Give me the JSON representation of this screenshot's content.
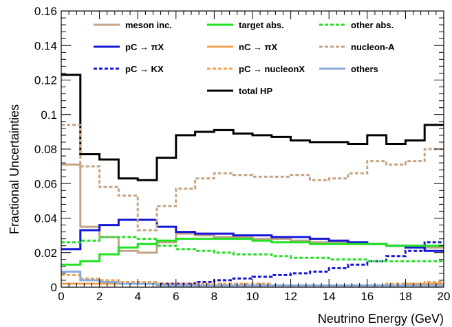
{
  "chart_data": {
    "type": "line",
    "step": true,
    "xlabel": "Neutrino Energy (GeV)",
    "ylabel": "Fractional Uncertainties",
    "xlim": [
      0,
      20
    ],
    "ylim": [
      0,
      0.16
    ],
    "x_ticks": [
      "0",
      "2",
      "4",
      "6",
      "8",
      "10",
      "12",
      "14",
      "16",
      "18",
      "20"
    ],
    "y_ticks": [
      "0",
      "0.02",
      "0.04",
      "0.06",
      "0.08",
      "0.1",
      "0.12",
      "0.14",
      "0.16"
    ],
    "grid": false,
    "legend_position": "top",
    "bin_edges": [
      0,
      1,
      2,
      3,
      4,
      5,
      6,
      7,
      8,
      9,
      10,
      11,
      12,
      13,
      14,
      15,
      16,
      17,
      18,
      19,
      20
    ],
    "series": [
      {
        "name": "meson inc.",
        "color": "#c4a484",
        "dash": "solid",
        "values": [
          0.071,
          0.035,
          0.029,
          0.021,
          0.02,
          0.026,
          0.031,
          0.03,
          0.029,
          0.029,
          0.028,
          0.028,
          0.027,
          0.026,
          0.026,
          0.025,
          0.025,
          0.024,
          0.024,
          0.023
        ]
      },
      {
        "name": "pC → πX",
        "color": "#1515d6",
        "dash": "solid",
        "values": [
          0.022,
          0.033,
          0.036,
          0.039,
          0.039,
          0.035,
          0.032,
          0.031,
          0.031,
          0.03,
          0.03,
          0.029,
          0.029,
          0.028,
          0.027,
          0.026,
          0.025,
          0.024,
          0.023,
          0.021
        ]
      },
      {
        "name": "pC → KX",
        "color": "#1515d6",
        "dash": "dotted",
        "values": [
          0.002,
          0.002,
          0.002,
          0.002,
          0.002,
          0.002,
          0.002,
          0.003,
          0.004,
          0.005,
          0.006,
          0.007,
          0.008,
          0.009,
          0.011,
          0.013,
          0.015,
          0.018,
          0.021,
          0.026
        ]
      },
      {
        "name": "target abs.",
        "color": "#22e022",
        "dash": "solid",
        "values": [
          0.013,
          0.015,
          0.019,
          0.023,
          0.025,
          0.027,
          0.028,
          0.028,
          0.028,
          0.028,
          0.027,
          0.026,
          0.026,
          0.025,
          0.025,
          0.025,
          0.025,
          0.024,
          0.024,
          0.024
        ]
      },
      {
        "name": "nC → πX",
        "color": "#f0a050",
        "dash": "solid",
        "values": [
          0.002,
          0.002,
          0.002,
          0.002,
          0.002,
          0.001,
          0.001,
          0.001,
          0.001,
          0.001,
          0.001,
          0.001,
          0.001,
          0.001,
          0.001,
          0.001,
          0.001,
          0.001,
          0.002,
          0.002
        ]
      },
      {
        "name": "pC → nucleonX",
        "color": "#f0a050",
        "dash": "dotted",
        "values": [
          0.007,
          0.005,
          0.004,
          0.003,
          0.003,
          0.002,
          0.002,
          0.002,
          0.002,
          0.002,
          0.002,
          0.001,
          0.001,
          0.001,
          0.001,
          0.001,
          0.001,
          0.002,
          0.002,
          0.003
        ]
      },
      {
        "name": "total HP",
        "color": "#000000",
        "dash": "solid",
        "values": [
          0.123,
          0.077,
          0.074,
          0.063,
          0.062,
          0.075,
          0.088,
          0.09,
          0.091,
          0.089,
          0.088,
          0.087,
          0.085,
          0.084,
          0.084,
          0.083,
          0.088,
          0.083,
          0.085,
          0.094
        ]
      },
      {
        "name": "other abs.",
        "color": "#22e022",
        "dash": "dotted",
        "values": [
          0.026,
          0.027,
          0.029,
          0.029,
          0.028,
          0.024,
          0.022,
          0.021,
          0.02,
          0.019,
          0.019,
          0.018,
          0.017,
          0.017,
          0.016,
          0.016,
          0.015,
          0.015,
          0.015,
          0.015
        ]
      },
      {
        "name": "nucleon-A",
        "color": "#c4a484",
        "dash": "dotted",
        "values": [
          0.094,
          0.07,
          0.058,
          0.053,
          0.033,
          0.047,
          0.057,
          0.063,
          0.066,
          0.065,
          0.064,
          0.064,
          0.065,
          0.062,
          0.063,
          0.066,
          0.073,
          0.071,
          0.073,
          0.08
        ]
      },
      {
        "name": "others",
        "color": "#8aaada",
        "dash": "solid",
        "values": [
          0.009,
          0.004,
          0.003,
          0.002,
          0.002,
          0.001,
          0.001,
          0.001,
          0.001,
          0.001,
          0.001,
          0.001,
          0.001,
          0.001,
          0.001,
          0.001,
          0.001,
          0.001,
          0.001,
          0.001
        ]
      }
    ]
  }
}
